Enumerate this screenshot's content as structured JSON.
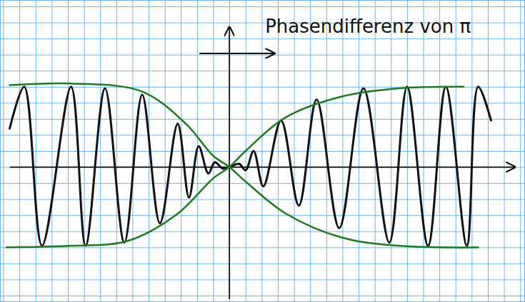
{
  "chart_data": {
    "type": "line",
    "title": "Phasendifferenz von π",
    "xlim": [
      -14.2,
      18.3
    ],
    "ylim": [
      -8.4,
      10.4
    ],
    "xticks": [
      -14,
      -13,
      -12,
      -11,
      -10,
      -9,
      -8,
      -7,
      -6,
      -5,
      -4,
      -3,
      -2,
      -1,
      0,
      1,
      2,
      3,
      4,
      5,
      6,
      7,
      8,
      9,
      10,
      11,
      12,
      13,
      14,
      15,
      16,
      17,
      18
    ],
    "yticks": [
      -8,
      -7,
      -6,
      -5,
      -4,
      -3,
      -2,
      -1,
      0,
      1,
      2,
      3,
      4,
      5,
      6,
      7,
      8,
      9,
      10
    ],
    "grid": true,
    "tick_labels": false,
    "series": [
      {
        "color": "#111111",
        "x": [
          -13.6,
          -12.7,
          -11.6,
          -9.8,
          -8.9,
          -7.7,
          -6.5,
          -5.4,
          -4.3,
          -3.2,
          -2.5,
          -1.9,
          -1.3,
          -0.9,
          -0.4,
          0,
          0.6,
          1.0,
          1.5,
          2.1,
          3.2,
          4.3,
          5.4,
          6.8,
          8.3,
          9.9,
          11.0,
          12.3,
          13.4,
          14.7,
          15.4,
          16.2
        ],
        "values": [
          2.4,
          5.0,
          -4.9,
          5.0,
          -4.9,
          4.9,
          -4.7,
          4.5,
          -3.5,
          2.7,
          -1.9,
          1.3,
          -0.4,
          0.3,
          -0.1,
          0,
          0.2,
          -0.2,
          1.0,
          -1.2,
          2.9,
          -2.4,
          4.2,
          -3.8,
          4.9,
          -4.7,
          5.0,
          -4.9,
          5.0,
          -4.9,
          5.0,
          2.9
        ]
      },
      {
        "color": "#1f7a1f",
        "x": [
          -13.6,
          -9.8,
          -5.4,
          -2.7,
          -1.0,
          0,
          1.0,
          3.5,
          7.0,
          10.5,
          15.4
        ],
        "values": [
          5.1,
          5.2,
          4.7,
          2.7,
          0.7,
          0,
          -0.9,
          -2.9,
          -4.4,
          -4.9,
          -5.0
        ]
      },
      {
        "color": "#1f7a1f",
        "x": [
          -13.8,
          -9.8,
          -6.3,
          -3.2,
          -1.0,
          0,
          1.0,
          3.5,
          7.0,
          10.5,
          14.5
        ],
        "values": [
          -5.0,
          -4.9,
          -4.6,
          -2.9,
          -0.7,
          0,
          1.0,
          3.1,
          4.4,
          4.9,
          5.0
        ]
      }
    ]
  }
}
